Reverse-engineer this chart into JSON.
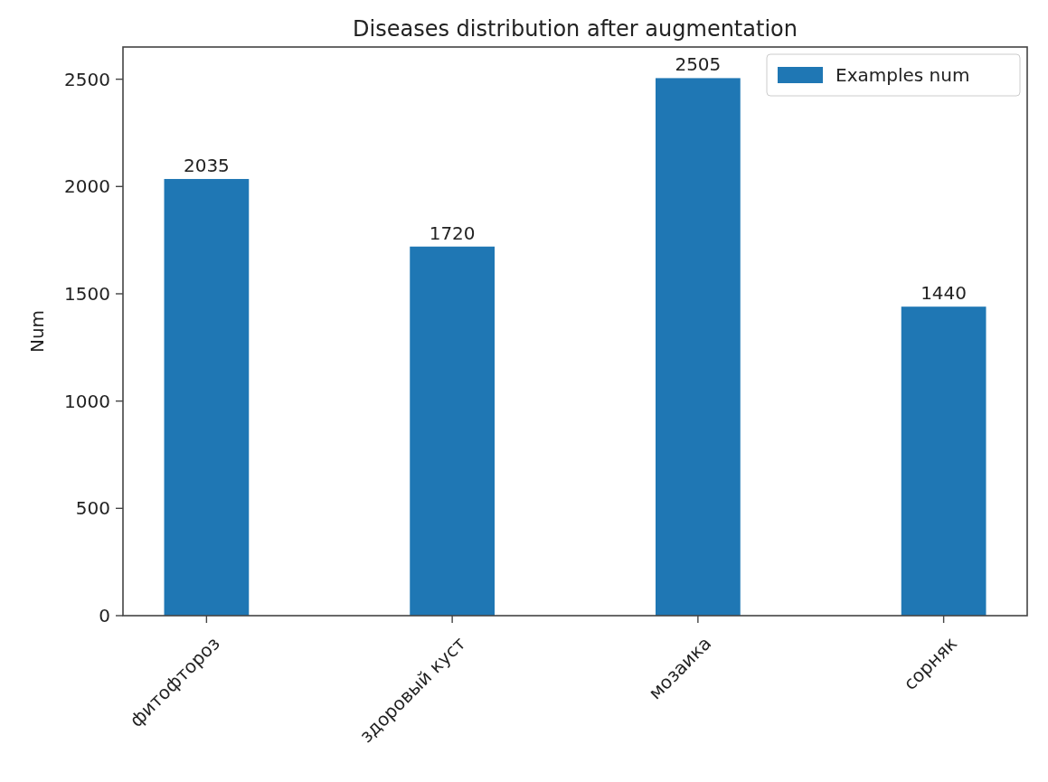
{
  "chart_data": {
    "type": "bar",
    "title": "Diseases distribution after augmentation",
    "ylabel": "Num",
    "categories": [
      "фитофтороз",
      "здоровый куст",
      "мозаика",
      "сорняк"
    ],
    "series": [
      {
        "name": "Examples num",
        "color": "#1f77b4",
        "values": [
          2035,
          1720,
          2505,
          1440
        ]
      }
    ],
    "ylim": [
      0,
      2650
    ],
    "yticks": [
      0,
      500,
      1000,
      1500,
      2000,
      2500
    ],
    "data_labels": true,
    "legend": "top right",
    "grid": false
  }
}
